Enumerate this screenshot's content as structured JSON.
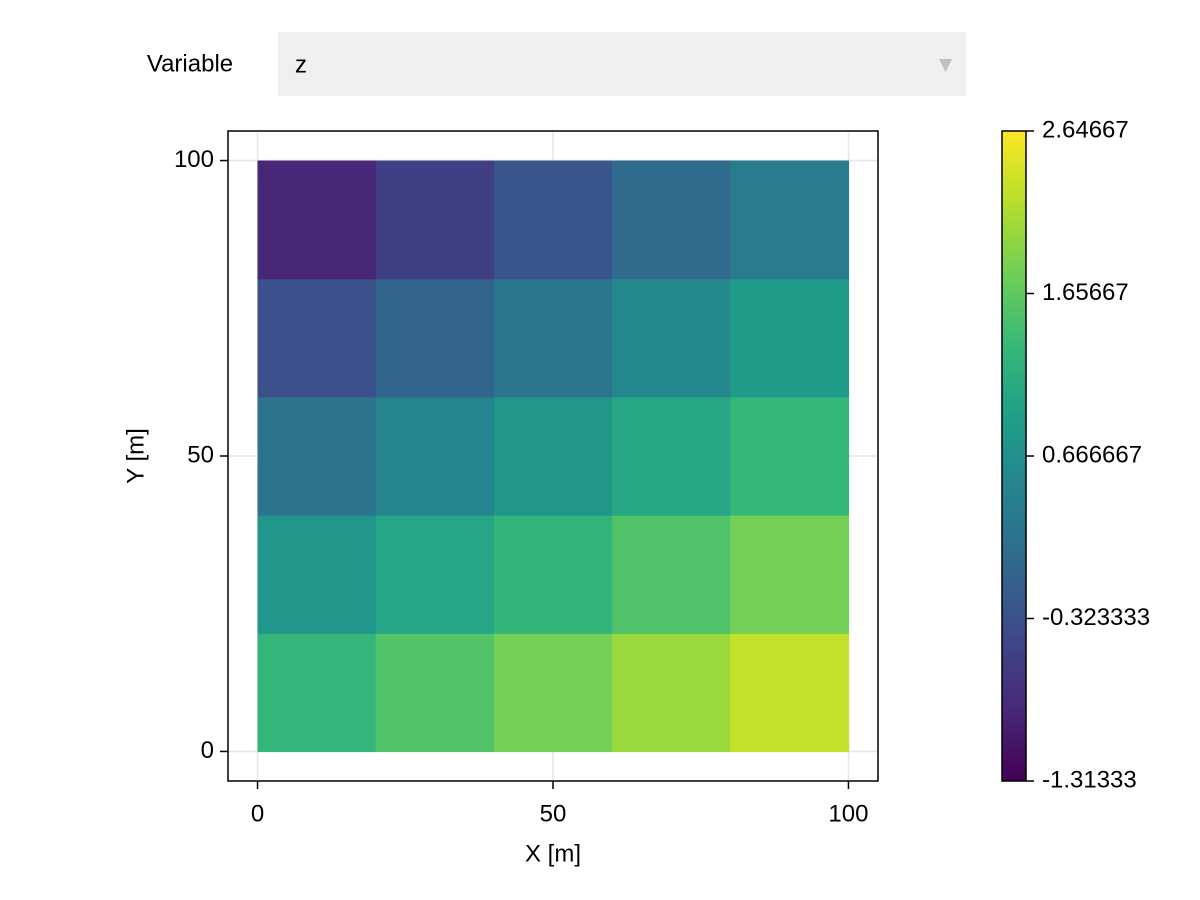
{
  "menu": {
    "label": "Variable",
    "selected": "z"
  },
  "chart_data": {
    "type": "heatmap",
    "xlabel": "X [m]",
    "ylabel": "Y [m]",
    "x": [
      10,
      30,
      50,
      70,
      90
    ],
    "y": [
      10,
      30,
      50,
      70,
      90
    ],
    "z": [
      [
        1.31,
        1.55,
        1.8,
        2.04,
        2.29
      ],
      [
        0.76,
        1.02,
        1.28,
        1.54,
        1.8
      ],
      [
        0.21,
        0.49,
        0.77,
        1.04,
        1.32
      ],
      [
        -0.34,
        -0.04,
        0.25,
        0.54,
        0.84
      ],
      [
        -0.88,
        -0.57,
        -0.26,
        0.05,
        0.35
      ]
    ],
    "xlim": [
      -5,
      105
    ],
    "ylim": [
      -5,
      105
    ],
    "xticks": [
      0,
      50,
      100
    ],
    "yticks": [
      0,
      50,
      100
    ],
    "grid": true,
    "colormap": "viridis",
    "clim": [
      -1.31333,
      2.64667
    ],
    "cticks": [
      -1.31333,
      -0.323333,
      0.666667,
      1.65667,
      2.64667
    ]
  }
}
